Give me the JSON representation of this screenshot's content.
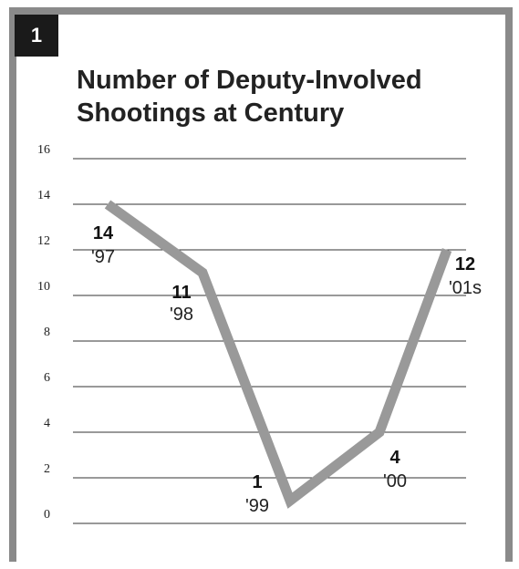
{
  "figure": {
    "badge": "1",
    "title_line1": "Number of Deputy-Involved",
    "title_line2": "Shootings at Century"
  },
  "chart_data": {
    "type": "line",
    "title": "Number of Deputy-Involved Shootings at Century",
    "xlabel": "",
    "ylabel": "",
    "ylim": [
      0,
      16
    ],
    "yticks": [
      0,
      2,
      4,
      6,
      8,
      10,
      12,
      14,
      16
    ],
    "grid": true,
    "categories": [
      "'97",
      "'98",
      "'99",
      "'00",
      "'01s"
    ],
    "series": [
      {
        "values": [
          14,
          11,
          1,
          4,
          12
        ],
        "data_labels": [
          "14",
          "11",
          "1",
          "4",
          "12"
        ],
        "color": "#999999"
      }
    ]
  },
  "colors": {
    "frame": "#8a8a8a",
    "badge_bg": "#1a1a1a",
    "gridline": "#333333",
    "line": "#999999"
  }
}
